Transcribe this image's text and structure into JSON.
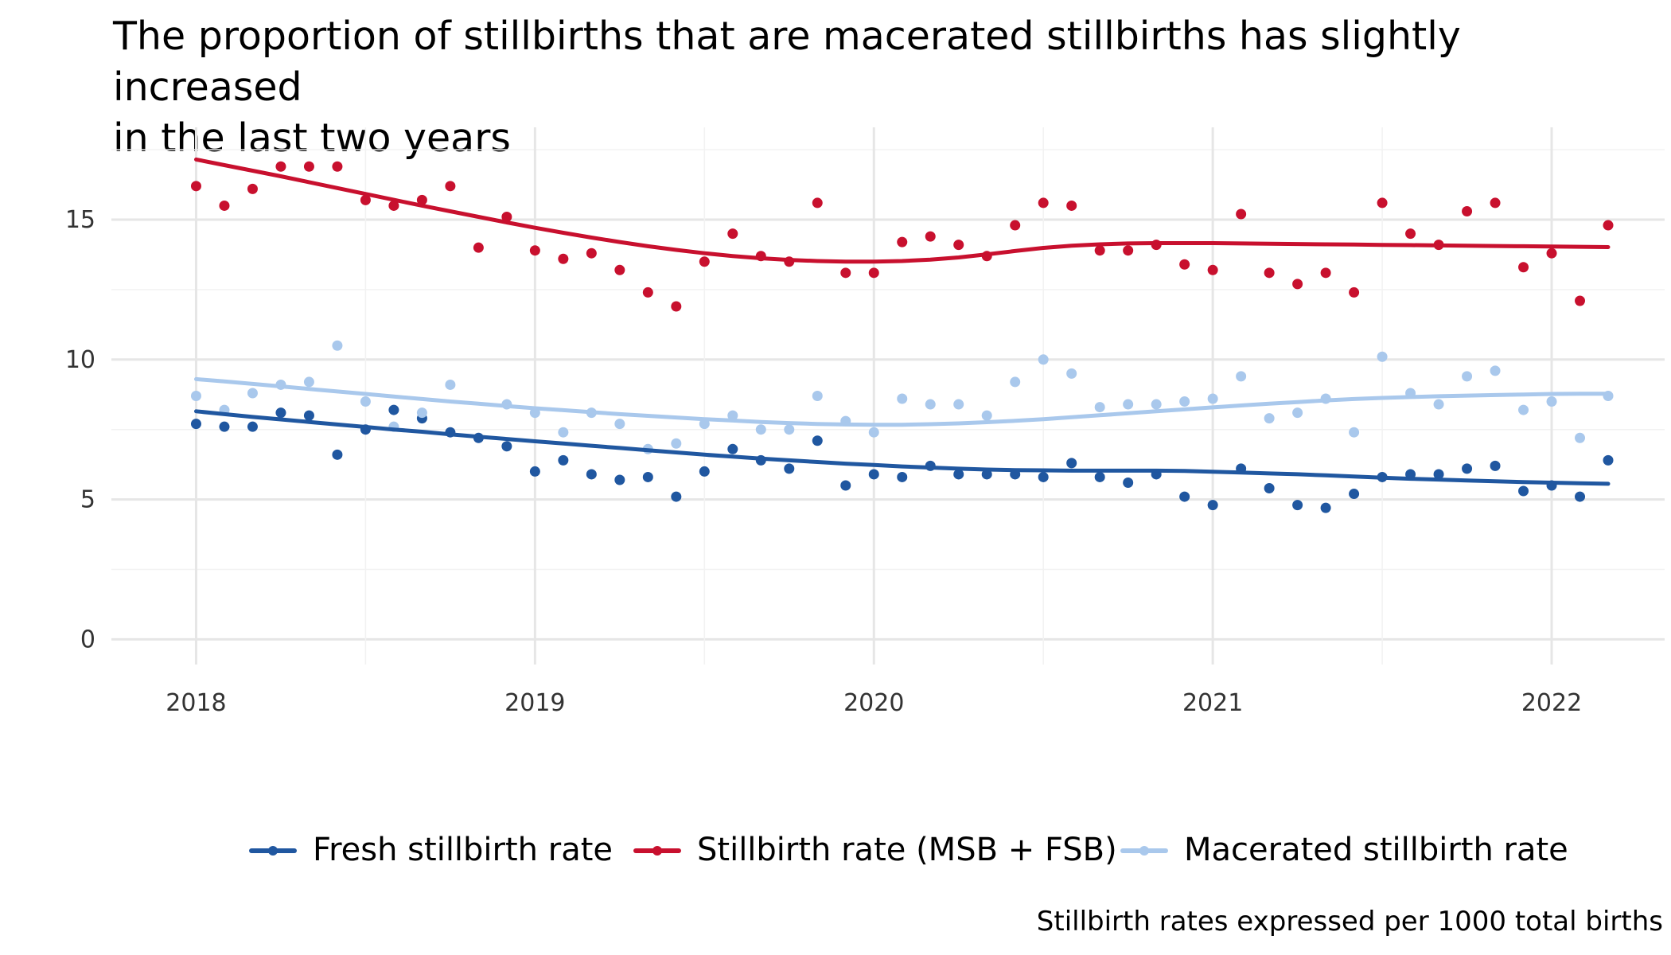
{
  "title_lines": [
    "The proportion of stillbirths that are macerated stillbirths has slightly increased",
    "in the last two years"
  ],
  "caption": "Stillbirth rates expressed per 1000 total births",
  "chart_data": {
    "type": "line",
    "title": "The proportion of stillbirths that are macerated stillbirths has slightly increased in the last two years",
    "xlabel": "",
    "ylabel": "",
    "x_ticks": [
      "2018",
      "2019",
      "2020",
      "2021",
      "2022"
    ],
    "y_ticks": [
      "0",
      "5",
      "10",
      "15"
    ],
    "ylim": [
      -0.9,
      18.3
    ],
    "xlim": [
      "2017-10",
      "2022-05"
    ],
    "grid": true,
    "legend_position": "bottom",
    "x": [
      "2018-01",
      "2018-02",
      "2018-03",
      "2018-04",
      "2018-05",
      "2018-06",
      "2018-07",
      "2018-08",
      "2018-09",
      "2018-10",
      "2018-11",
      "2018-12",
      "2019-01",
      "2019-02",
      "2019-03",
      "2019-04",
      "2019-05",
      "2019-06",
      "2019-07",
      "2019-08",
      "2019-09",
      "2019-10",
      "2019-11",
      "2019-12",
      "2020-01",
      "2020-02",
      "2020-03",
      "2020-04",
      "2020-05",
      "2020-06",
      "2020-07",
      "2020-08",
      "2020-09",
      "2020-10",
      "2020-11",
      "2020-12",
      "2021-01",
      "2021-02",
      "2021-03",
      "2021-04",
      "2021-05",
      "2021-06",
      "2021-07",
      "2021-08",
      "2021-09",
      "2021-10",
      "2021-11",
      "2021-12",
      "2022-01",
      "2022-02",
      "2022-03"
    ],
    "series": [
      {
        "name": "Fresh stillbirth rate",
        "color": "#2057a0",
        "values": [
          7.7,
          7.6,
          7.6,
          8.1,
          8.0,
          6.6,
          7.5,
          8.2,
          7.9,
          7.4,
          7.2,
          6.9,
          6.0,
          6.4,
          5.9,
          5.7,
          5.8,
          5.1,
          6.0,
          6.8,
          6.4,
          6.1,
          7.1,
          5.5,
          5.9,
          5.8,
          6.2,
          5.9,
          5.9,
          5.9,
          5.8,
          6.3,
          5.8,
          5.6,
          5.9,
          5.1,
          4.8,
          6.1,
          5.4,
          4.8,
          4.7,
          5.2,
          5.8,
          5.9,
          5.9,
          6.1,
          6.2,
          5.3,
          5.5,
          5.1,
          6.4
        ],
        "trend": [
          8.15,
          8.05,
          7.95,
          7.86,
          7.77,
          7.68,
          7.59,
          7.5,
          7.42,
          7.33,
          7.24,
          7.16,
          7.08,
          7.0,
          6.92,
          6.84,
          6.76,
          6.68,
          6.6,
          6.53,
          6.46,
          6.4,
          6.34,
          6.28,
          6.23,
          6.18,
          6.14,
          6.1,
          6.07,
          6.05,
          6.04,
          6.03,
          6.03,
          6.03,
          6.03,
          6.02,
          5.99,
          5.96,
          5.93,
          5.9,
          5.86,
          5.82,
          5.78,
          5.74,
          5.71,
          5.68,
          5.65,
          5.62,
          5.6,
          5.58,
          5.56
        ]
      },
      {
        "name": "Stillbirth rate (MSB + FSB)",
        "color": "#c8102e",
        "values": [
          16.2,
          15.5,
          16.1,
          16.9,
          16.9,
          16.9,
          15.7,
          15.5,
          15.7,
          16.2,
          14.0,
          15.1,
          13.9,
          13.6,
          13.8,
          13.2,
          12.4,
          11.9,
          13.5,
          14.5,
          13.7,
          13.5,
          15.6,
          13.1,
          13.1,
          14.2,
          14.4,
          14.1,
          13.7,
          14.8,
          15.6,
          15.5,
          13.9,
          13.9,
          14.1,
          13.4,
          13.2,
          15.2,
          13.1,
          12.7,
          13.1,
          12.4,
          15.6,
          14.5,
          14.1,
          15.3,
          15.6,
          13.3,
          13.8,
          12.1,
          14.8
        ],
        "trend": [
          17.15,
          16.95,
          16.75,
          16.55,
          16.34,
          16.13,
          15.92,
          15.71,
          15.5,
          15.3,
          15.1,
          14.9,
          14.71,
          14.53,
          14.36,
          14.2,
          14.05,
          13.92,
          13.8,
          13.7,
          13.62,
          13.56,
          13.52,
          13.5,
          13.5,
          13.52,
          13.57,
          13.65,
          13.76,
          13.88,
          13.99,
          14.07,
          14.12,
          14.15,
          14.16,
          14.16,
          14.16,
          14.15,
          14.14,
          14.13,
          14.12,
          14.11,
          14.1,
          14.09,
          14.08,
          14.07,
          14.06,
          14.05,
          14.04,
          14.03,
          14.02
        ]
      },
      {
        "name": "Macerated stillbirth rate",
        "color": "#a9c8ec",
        "values": [
          8.7,
          8.2,
          8.8,
          9.1,
          9.2,
          10.5,
          8.5,
          7.6,
          8.1,
          9.1,
          null,
          8.4,
          8.1,
          7.4,
          8.1,
          7.7,
          6.8,
          7.0,
          7.7,
          8.0,
          7.5,
          7.5,
          8.7,
          7.8,
          7.4,
          8.6,
          8.4,
          8.4,
          8.0,
          9.2,
          10.0,
          9.5,
          8.3,
          8.4,
          8.4,
          8.5,
          8.6,
          9.4,
          7.9,
          8.1,
          8.6,
          7.4,
          10.1,
          8.8,
          8.4,
          9.4,
          9.6,
          8.2,
          8.5,
          7.2,
          8.7
        ],
        "trend": [
          9.3,
          9.22,
          9.13,
          9.04,
          8.95,
          8.86,
          8.77,
          8.68,
          8.59,
          8.5,
          8.42,
          8.34,
          8.26,
          8.19,
          8.12,
          8.05,
          7.99,
          7.93,
          7.87,
          7.82,
          7.77,
          7.73,
          7.7,
          7.68,
          7.67,
          7.67,
          7.69,
          7.72,
          7.76,
          7.81,
          7.87,
          7.94,
          8.01,
          8.08,
          8.15,
          8.22,
          8.29,
          8.36,
          8.42,
          8.48,
          8.54,
          8.59,
          8.63,
          8.66,
          8.69,
          8.71,
          8.73,
          8.75,
          8.77,
          8.78,
          8.78
        ]
      }
    ]
  }
}
